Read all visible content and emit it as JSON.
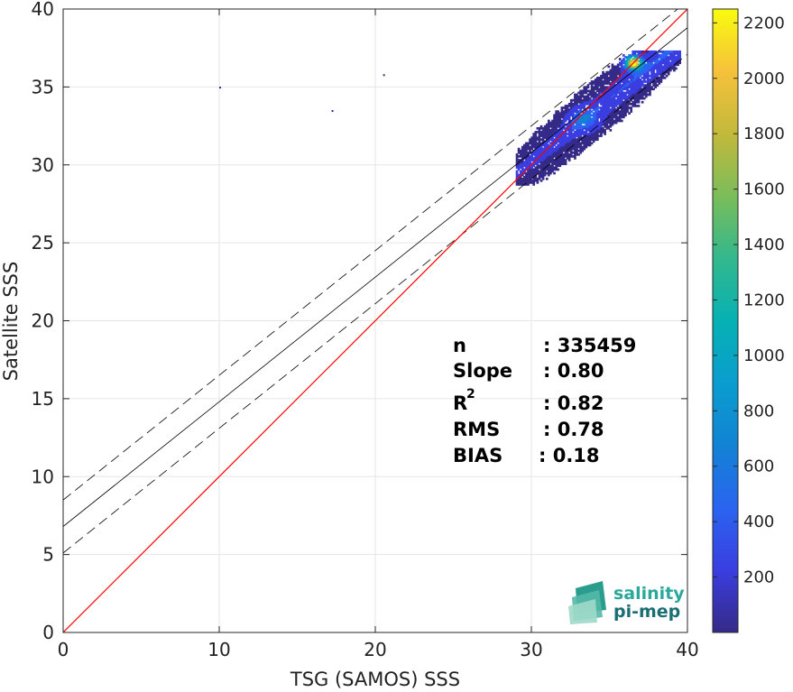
{
  "chart_data": {
    "type": "scatter",
    "xlabel": "TSG (SAMOS) SSS",
    "ylabel": "Satellite SSS",
    "xlim": [
      0,
      40
    ],
    "ylim": [
      0,
      40
    ],
    "xticks": [
      "0",
      "10",
      "20",
      "30",
      "40"
    ],
    "yticks": [
      "0",
      "5",
      "10",
      "15",
      "20",
      "25",
      "30",
      "35",
      "40"
    ],
    "grid": true,
    "identity_line": {
      "slope": 1,
      "intercept": 0,
      "color": "#ff0000"
    },
    "regression_line": {
      "slope": 0.8,
      "intercept": 6.8,
      "color": "#000000"
    },
    "band_lines": [
      {
        "slope": 0.8,
        "intercept": 8.5
      },
      {
        "slope": 0.8,
        "intercept": 5.1
      }
    ],
    "density": {
      "description": "2D histogram counts of collocations",
      "x_range": [
        29,
        39.5
      ],
      "y_range": [
        28.7,
        37.3
      ],
      "peak": {
        "x": 36.5,
        "y": 36.5,
        "count": 2250
      },
      "outliers": [
        {
          "x": 20.5,
          "y": 35.7
        },
        {
          "x": 10,
          "y": 34.9
        },
        {
          "x": 17.2,
          "y": 33.4
        }
      ]
    },
    "colorbar": {
      "min": 0,
      "max": 2250,
      "ticks": [
        "200",
        "400",
        "600",
        "800",
        "1000",
        "1200",
        "1400",
        "1600",
        "1800",
        "2000",
        "2200"
      ],
      "colormap": "parula"
    }
  },
  "stats": [
    {
      "name": "n",
      "value": ": 335459"
    },
    {
      "name": "Slope",
      "value": ": 0.80"
    },
    {
      "name": "R",
      "sup": "2",
      "value": ": 0.82"
    },
    {
      "name": "RMS",
      "value": ": 0.78"
    },
    {
      "name": "BIAS",
      "value": ": 0.18"
    }
  ],
  "logo": {
    "line1": "salinity",
    "line2": "pi-mep",
    "color1": "#2aa89a",
    "color2": "#1a6f72"
  }
}
